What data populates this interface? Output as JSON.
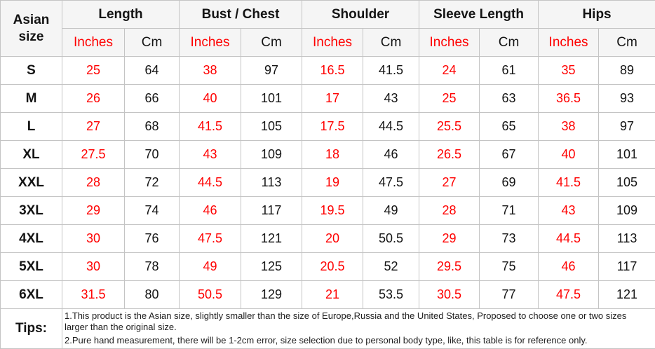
{
  "chart_data": {
    "type": "table",
    "corner_label": "Asian size",
    "column_groups": [
      "Length",
      "Bust / Chest",
      "Shoulder",
      "Sleeve Length",
      "Hips"
    ],
    "unit_labels": [
      "Inches",
      "Cm"
    ],
    "columns": [
      "Asian size",
      "Length Inches",
      "Length Cm",
      "Bust / Chest Inches",
      "Bust / Chest Cm",
      "Shoulder Inches",
      "Shoulder Cm",
      "Sleeve Length Inches",
      "Sleeve Length Cm",
      "Hips Inches",
      "Hips Cm"
    ],
    "rows": [
      {
        "size": "S",
        "values": [
          "25",
          "64",
          "38",
          "97",
          "16.5",
          "41.5",
          "24",
          "61",
          "35",
          "89"
        ]
      },
      {
        "size": "M",
        "values": [
          "26",
          "66",
          "40",
          "101",
          "17",
          "43",
          "25",
          "63",
          "36.5",
          "93"
        ]
      },
      {
        "size": "L",
        "values": [
          "27",
          "68",
          "41.5",
          "105",
          "17.5",
          "44.5",
          "25.5",
          "65",
          "38",
          "97"
        ]
      },
      {
        "size": "XL",
        "values": [
          "27.5",
          "70",
          "43",
          "109",
          "18",
          "46",
          "26.5",
          "67",
          "40",
          "101"
        ]
      },
      {
        "size": "XXL",
        "values": [
          "28",
          "72",
          "44.5",
          "113",
          "19",
          "47.5",
          "27",
          "69",
          "41.5",
          "105"
        ]
      },
      {
        "size": "3XL",
        "values": [
          "29",
          "74",
          "46",
          "117",
          "19.5",
          "49",
          "28",
          "71",
          "43",
          "109"
        ]
      },
      {
        "size": "4XL",
        "values": [
          "30",
          "76",
          "47.5",
          "121",
          "20",
          "50.5",
          "29",
          "73",
          "44.5",
          "113"
        ]
      },
      {
        "size": "5XL",
        "values": [
          "30",
          "78",
          "49",
          "125",
          "20.5",
          "52",
          "29.5",
          "75",
          "46",
          "117"
        ]
      },
      {
        "size": "6XL",
        "values": [
          "31.5",
          "80",
          "50.5",
          "129",
          "21",
          "53.5",
          "30.5",
          "77",
          "47.5",
          "121"
        ]
      }
    ],
    "tips": {
      "label": "Tips:",
      "lines": [
        "1.This product is the Asian size, slightly smaller than the size of Europe,Russia and the United States, Proposed to choose one or two sizes larger than the original size.",
        "2.Pure hand measurement, there will be 1-2cm error, size selection due to personal body type, like, this table is for reference only."
      ]
    }
  },
  "colors": {
    "accent_red": "#ff0000",
    "header_bg": "#f5f5f5",
    "border": "#c4c4c4",
    "text": "#141414"
  }
}
